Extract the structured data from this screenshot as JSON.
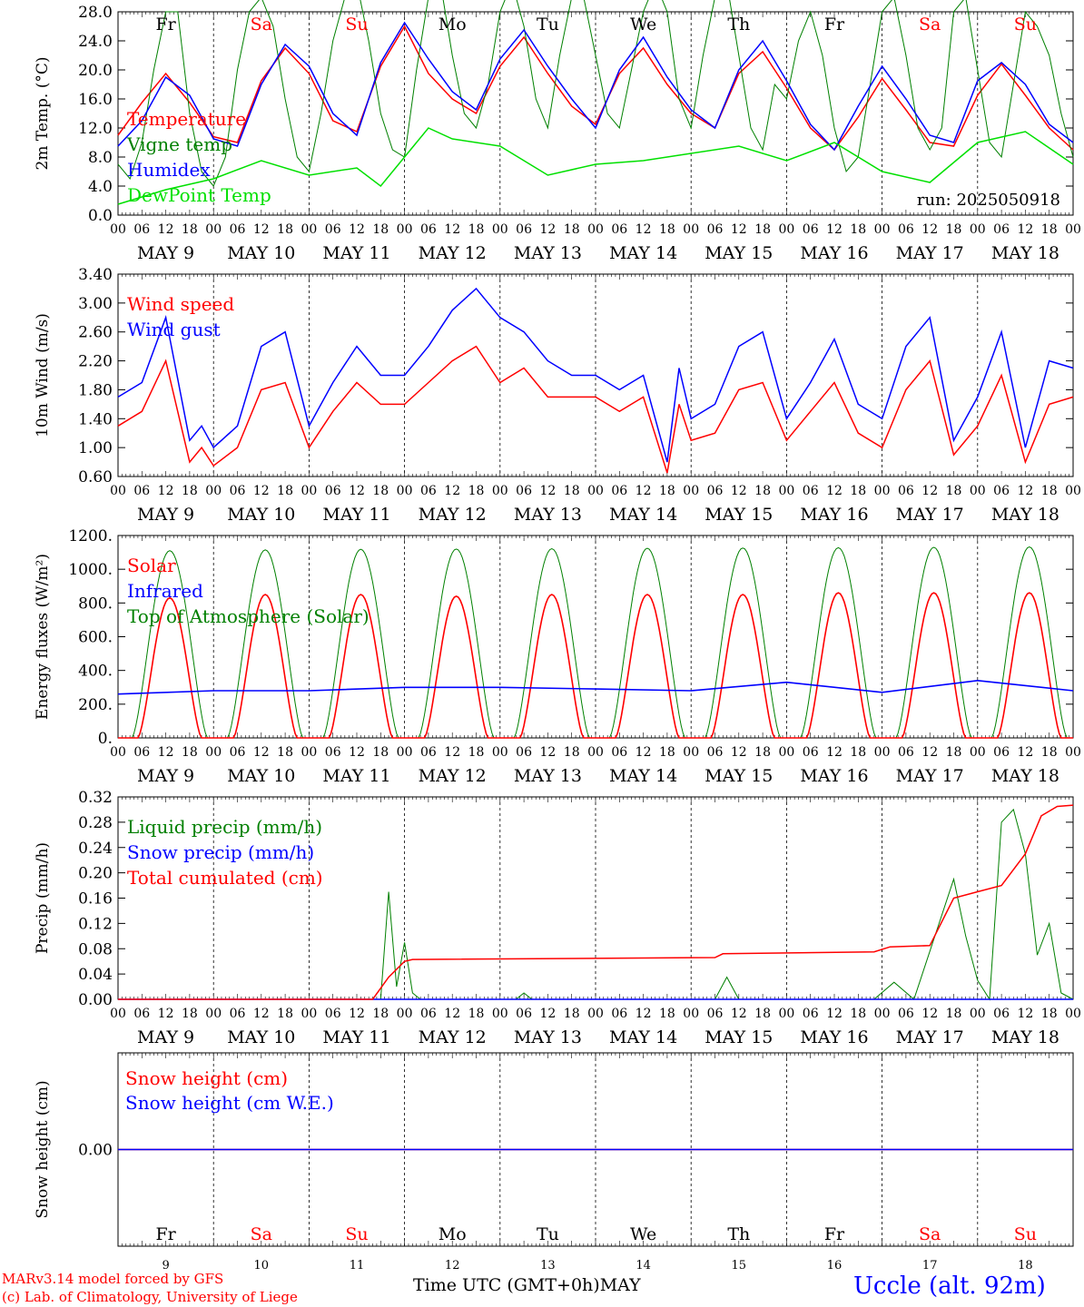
{
  "colors": {
    "red": "#ff0000",
    "darkgreen": "#008000",
    "blue": "#0000ff",
    "lightgreen": "#00e000",
    "axis": "#000000"
  },
  "day_names": [
    {
      "name": "Fr",
      "weekend": false
    },
    {
      "name": "Sa",
      "weekend": true
    },
    {
      "name": "Su",
      "weekend": true
    },
    {
      "name": "Mo",
      "weekend": false
    },
    {
      "name": "Tu",
      "weekend": false
    },
    {
      "name": "We",
      "weekend": false
    },
    {
      "name": "Th",
      "weekend": false
    },
    {
      "name": "Fr",
      "weekend": false
    },
    {
      "name": "Sa",
      "weekend": true
    },
    {
      "name": "Su",
      "weekend": true
    }
  ],
  "hour_ticks": [
    "00",
    "06",
    "12",
    "18"
  ],
  "hour_tick_end": "00",
  "date_labels": [
    "MAY  9",
    "MAY 10",
    "MAY 11",
    "MAY 12",
    "MAY 13",
    "MAY 14",
    "MAY 15",
    "MAY 16",
    "MAY 17",
    "MAY 18"
  ],
  "day_numbers": [
    "9",
    "10",
    "11",
    "12",
    "13",
    "14",
    "15",
    "16",
    "17",
    "18"
  ],
  "chart_data": [
    {
      "type": "line",
      "ylabel": "2m Temp. (°C)",
      "ylim": [
        0,
        28
      ],
      "yticks": [
        "0.0",
        "4.0",
        "8.0",
        "12.0",
        "16.0",
        "20.0",
        "24.0",
        "28.0"
      ],
      "run_label": "run: 2025050918",
      "x_unit": "hours since May 9 00 UTC",
      "series": [
        {
          "name": "Temperature",
          "color": "#ff0000",
          "x": [
            0,
            6,
            12,
            18,
            24,
            30,
            36,
            42,
            48,
            54,
            60,
            66,
            72,
            78,
            84,
            90,
            96,
            102,
            108,
            114,
            120,
            126,
            132,
            138,
            144,
            150,
            156,
            162,
            168,
            174,
            180,
            186,
            192,
            198,
            204,
            210,
            216,
            222,
            228,
            234,
            240
          ],
          "values": [
            11.0,
            15.5,
            19.5,
            15.5,
            10.8,
            10.0,
            18.5,
            23.0,
            19.5,
            13.0,
            11.5,
            20.5,
            26.0,
            19.5,
            16.0,
            14.0,
            20.5,
            24.5,
            19.5,
            15.0,
            12.5,
            19.5,
            23.0,
            18.0,
            14.0,
            12.0,
            19.5,
            22.5,
            17.5,
            12.0,
            9.0,
            13.5,
            18.8,
            14.5,
            10.0,
            9.5,
            16.5,
            20.8,
            16.5,
            12.0,
            9.0
          ]
        },
        {
          "name": "Vigne temp",
          "color": "#008000",
          "x": [
            0,
            3,
            6,
            9,
            12,
            15,
            18,
            21,
            24,
            27,
            30,
            33,
            36,
            39,
            42,
            45,
            48,
            51,
            54,
            57,
            60,
            63,
            66,
            69,
            72,
            75,
            78,
            81,
            84,
            87,
            90,
            93,
            96,
            99,
            102,
            105,
            108,
            111,
            114,
            117,
            120,
            123,
            126,
            129,
            132,
            135,
            138,
            141,
            144,
            147,
            150,
            153,
            156,
            159,
            162,
            165,
            168,
            171,
            174,
            177,
            180,
            183,
            186,
            189,
            192,
            195,
            198,
            201,
            204,
            207,
            210,
            213,
            216,
            219,
            222,
            225,
            228,
            231,
            234,
            237,
            240
          ],
          "values": [
            7,
            5,
            10,
            20,
            28,
            28,
            14,
            6,
            4,
            8,
            20,
            28,
            30,
            26,
            16,
            8,
            6,
            14,
            24,
            30,
            32,
            24,
            14,
            9,
            8,
            20,
            30,
            32,
            22,
            14,
            12,
            18,
            28,
            32,
            26,
            16,
            12,
            22,
            30,
            30,
            22,
            14,
            12,
            20,
            28,
            32,
            28,
            16,
            12,
            22,
            30,
            32,
            22,
            12,
            9,
            18,
            16,
            24,
            28,
            22,
            12,
            6,
            8,
            18,
            28,
            30,
            22,
            12,
            9,
            12,
            28,
            30,
            20,
            10,
            8,
            18,
            28,
            26,
            22,
            14,
            8
          ]
        },
        {
          "name": "Humidex",
          "color": "#0000ff",
          "x": [
            0,
            6,
            12,
            18,
            24,
            30,
            36,
            42,
            48,
            54,
            60,
            66,
            72,
            78,
            84,
            90,
            96,
            102,
            108,
            114,
            120,
            126,
            132,
            138,
            144,
            150,
            156,
            162,
            168,
            174,
            180,
            186,
            192,
            198,
            204,
            210,
            216,
            222,
            228,
            234,
            240
          ],
          "values": [
            9.5,
            13.0,
            19.0,
            16.5,
            10.5,
            9.5,
            18.0,
            23.5,
            20.5,
            14.0,
            11.0,
            21.0,
            26.5,
            21.5,
            17.0,
            14.5,
            21.5,
            25.5,
            20.5,
            16.0,
            12.0,
            20.0,
            24.5,
            19.0,
            14.5,
            12.0,
            20.0,
            24.0,
            18.5,
            12.5,
            9.0,
            15.0,
            20.5,
            16.0,
            11.0,
            10.0,
            18.5,
            21.0,
            18.0,
            12.5,
            10.0
          ]
        },
        {
          "name": "DewPoint Temp",
          "color": "#00e000",
          "x": [
            0,
            12,
            24,
            36,
            48,
            60,
            66,
            72,
            78,
            84,
            96,
            108,
            120,
            132,
            144,
            156,
            168,
            180,
            192,
            204,
            216,
            228,
            240
          ],
          "values": [
            1.5,
            3.5,
            5.0,
            7.5,
            5.5,
            6.5,
            4.0,
            8.0,
            12.0,
            10.5,
            9.5,
            5.5,
            7.0,
            7.5,
            8.5,
            9.5,
            7.5,
            10.0,
            6.0,
            4.5,
            10.0,
            11.5,
            7.0
          ]
        }
      ]
    },
    {
      "type": "line",
      "ylabel": "10m Wind (m/s)",
      "ylim": [
        0.6,
        3.4
      ],
      "yticks": [
        "0.60",
        "1.00",
        "1.40",
        "1.80",
        "2.20",
        "2.60",
        "3.00",
        "3.40"
      ],
      "x_unit": "hours since May 9 00 UTC",
      "series": [
        {
          "name": "Wind speed",
          "color": "#ff0000",
          "x": [
            0,
            6,
            12,
            18,
            21,
            24,
            30,
            36,
            42,
            48,
            54,
            60,
            66,
            72,
            78,
            84,
            90,
            96,
            102,
            108,
            114,
            120,
            126,
            132,
            138,
            141,
            144,
            150,
            156,
            162,
            168,
            174,
            180,
            186,
            192,
            198,
            204,
            210,
            216,
            222,
            228,
            234,
            240
          ],
          "values": [
            1.3,
            1.5,
            2.2,
            0.8,
            1.0,
            0.75,
            1.0,
            1.8,
            1.9,
            1.0,
            1.5,
            1.9,
            1.6,
            1.6,
            1.9,
            2.2,
            2.4,
            1.9,
            2.1,
            1.7,
            1.7,
            1.7,
            1.5,
            1.7,
            0.65,
            1.6,
            1.1,
            1.2,
            1.8,
            1.9,
            1.1,
            1.5,
            1.9,
            1.2,
            1.0,
            1.8,
            2.2,
            0.9,
            1.3,
            2.0,
            0.8,
            1.6,
            1.7
          ]
        },
        {
          "name": "Wind gust",
          "color": "#0000ff",
          "x": [
            0,
            6,
            12,
            18,
            21,
            24,
            30,
            36,
            42,
            48,
            54,
            60,
            66,
            72,
            78,
            84,
            90,
            96,
            102,
            108,
            114,
            120,
            126,
            132,
            138,
            141,
            144,
            150,
            156,
            162,
            168,
            174,
            180,
            186,
            192,
            198,
            204,
            210,
            216,
            222,
            228,
            234,
            240
          ],
          "values": [
            1.7,
            1.9,
            2.8,
            1.1,
            1.3,
            1.0,
            1.3,
            2.4,
            2.6,
            1.3,
            1.9,
            2.4,
            2.0,
            2.0,
            2.4,
            2.9,
            3.2,
            2.8,
            2.6,
            2.2,
            2.0,
            2.0,
            1.8,
            2.0,
            0.8,
            2.1,
            1.4,
            1.6,
            2.4,
            2.6,
            1.4,
            1.9,
            2.5,
            1.6,
            1.4,
            2.4,
            2.8,
            1.1,
            1.7,
            2.6,
            1.0,
            2.2,
            2.1
          ]
        }
      ]
    },
    {
      "type": "line",
      "ylabel": "Energy fluxes (W/m²)",
      "ylim": [
        0,
        1200
      ],
      "yticks": [
        "0.",
        "200.",
        "400.",
        "600.",
        "800.",
        "1000.",
        "1200."
      ],
      "x_unit": "hours since May 9 00 UTC",
      "series": [
        {
          "name": "Solar",
          "color": "#ff0000",
          "peaks": [
            830,
            850,
            850,
            840,
            850,
            850,
            850,
            860,
            860,
            860
          ],
          "peak_hour": 13
        },
        {
          "name": "Infrared",
          "color": "#0000ff",
          "x": [
            0,
            24,
            48,
            72,
            96,
            120,
            144,
            168,
            192,
            216,
            240
          ],
          "values": [
            260,
            280,
            280,
            300,
            300,
            290,
            280,
            330,
            270,
            340,
            280
          ]
        },
        {
          "name": "Top of Atmosphere (Solar)",
          "color": "#008000",
          "peaks": [
            1110,
            1115,
            1118,
            1120,
            1122,
            1124,
            1126,
            1128,
            1130,
            1132
          ],
          "peak_hour": 13
        }
      ]
    },
    {
      "type": "line",
      "ylabel": "Precip (mm/h)",
      "ylim": [
        0,
        0.32
      ],
      "yticks": [
        "0.00",
        "0.04",
        "0.08",
        "0.12",
        "0.16",
        "0.20",
        "0.24",
        "0.28",
        "0.32"
      ],
      "x_unit": "hours since May 9 00 UTC",
      "series": [
        {
          "name": "Liquid precip (mm/h)",
          "color": "#008000",
          "x": [
            0,
            66,
            68,
            70,
            72,
            74,
            76,
            78,
            100,
            102,
            104,
            150,
            153,
            156,
            190,
            195,
            200,
            210,
            213,
            216,
            219,
            222,
            225,
            228,
            231,
            234,
            237,
            240
          ],
          "values": [
            0,
            0,
            0.17,
            0.02,
            0.09,
            0.01,
            0,
            0,
            0,
            0.01,
            0,
            0,
            0.035,
            0,
            0,
            0.027,
            0,
            0.19,
            0.1,
            0.03,
            0,
            0.28,
            0.3,
            0.23,
            0.07,
            0.12,
            0.01,
            0
          ]
        },
        {
          "name": "Snow precip (mm/h)",
          "color": "#0000ff",
          "x": [
            0,
            240
          ],
          "values": [
            0,
            0
          ]
        },
        {
          "name": "Total cumulated (cm)",
          "color": "#ff0000",
          "x": [
            0,
            64,
            68,
            72,
            74,
            150,
            152,
            190,
            194,
            204,
            210,
            216,
            222,
            228,
            232,
            236,
            240
          ],
          "values": [
            0,
            0,
            0.035,
            0.06,
            0.063,
            0.066,
            0.072,
            0.075,
            0.083,
            0.085,
            0.16,
            0.17,
            0.18,
            0.23,
            0.29,
            0.305,
            0.307
          ]
        }
      ]
    },
    {
      "type": "line",
      "ylabel": "Snow height (cm)",
      "ylim": [
        -1,
        1
      ],
      "yticks": [
        "0.00"
      ],
      "x_unit": "hours since May 9 00 UTC",
      "xlabel": "Time UTC (GMT+0h)MAY",
      "series": [
        {
          "name": "Snow height (cm)",
          "color": "#ff0000",
          "x": [
            0,
            240
          ],
          "values": [
            0,
            0
          ]
        },
        {
          "name": "Snow height (cm W.E.)",
          "color": "#0000ff",
          "x": [
            0,
            240
          ],
          "values": [
            0,
            0
          ]
        }
      ]
    }
  ],
  "footer": {
    "credit_line1": "MARv3.14 model forced by GFS",
    "credit_line2": "(c) Lab. of Climatology, University of Liege",
    "station": "Uccle (alt. 92m)",
    "xlabel": "Time UTC (GMT+0h)MAY"
  }
}
